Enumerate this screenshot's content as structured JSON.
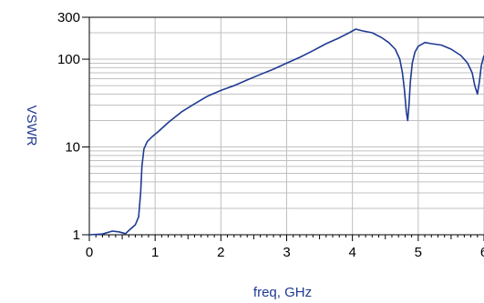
{
  "chart_data": {
    "type": "line",
    "title": "",
    "xlabel": "freq, GHz",
    "ylabel": "VSWR",
    "xscale": "linear",
    "yscale": "log",
    "xlim": [
      0,
      6
    ],
    "ylim": [
      1,
      300
    ],
    "x_ticks": [
      "0",
      "1",
      "2",
      "3",
      "4",
      "5",
      "6"
    ],
    "y_ticks": [
      {
        "value": 1,
        "label": "1"
      },
      {
        "value": 10,
        "label": "10"
      },
      {
        "value": 100,
        "label": "100"
      },
      {
        "value": 300,
        "label": "300"
      }
    ],
    "grid": true,
    "line_color": "#1f3a93",
    "series": [
      {
        "x": [
          0.0,
          0.2,
          0.35,
          0.45,
          0.55,
          0.62,
          0.7,
          0.75,
          0.78,
          0.8,
          0.83,
          0.88,
          0.95,
          1.05,
          1.2,
          1.4,
          1.6,
          1.8,
          2.0,
          2.2,
          2.4,
          2.6,
          2.8,
          3.0,
          3.2,
          3.4,
          3.6,
          3.8,
          3.95,
          4.05,
          4.15,
          4.3,
          4.45,
          4.55,
          4.65,
          4.72,
          4.76,
          4.79,
          4.82,
          4.84,
          4.86,
          4.88,
          4.91,
          4.95,
          5.0,
          5.1,
          5.2,
          5.35,
          5.5,
          5.65,
          5.75,
          5.82,
          5.86,
          5.9,
          5.93,
          5.96,
          6.0
        ],
        "y": [
          1.0,
          1.02,
          1.1,
          1.08,
          1.03,
          1.15,
          1.3,
          1.6,
          3.0,
          6.0,
          9.5,
          11.5,
          13.0,
          15.0,
          19.0,
          25.0,
          31.0,
          38.0,
          44.0,
          50.0,
          58.0,
          67.0,
          77.0,
          90.0,
          105.0,
          125.0,
          150.0,
          175.0,
          200.0,
          220.0,
          210.0,
          200.0,
          175.0,
          155.0,
          130.0,
          100.0,
          70.0,
          45.0,
          25.0,
          20.0,
          30.0,
          55.0,
          90.0,
          120.0,
          140.0,
          155.0,
          150.0,
          145.0,
          130.0,
          110.0,
          90.0,
          70.0,
          50.0,
          40.0,
          55.0,
          85.0,
          110.0
        ]
      }
    ]
  }
}
